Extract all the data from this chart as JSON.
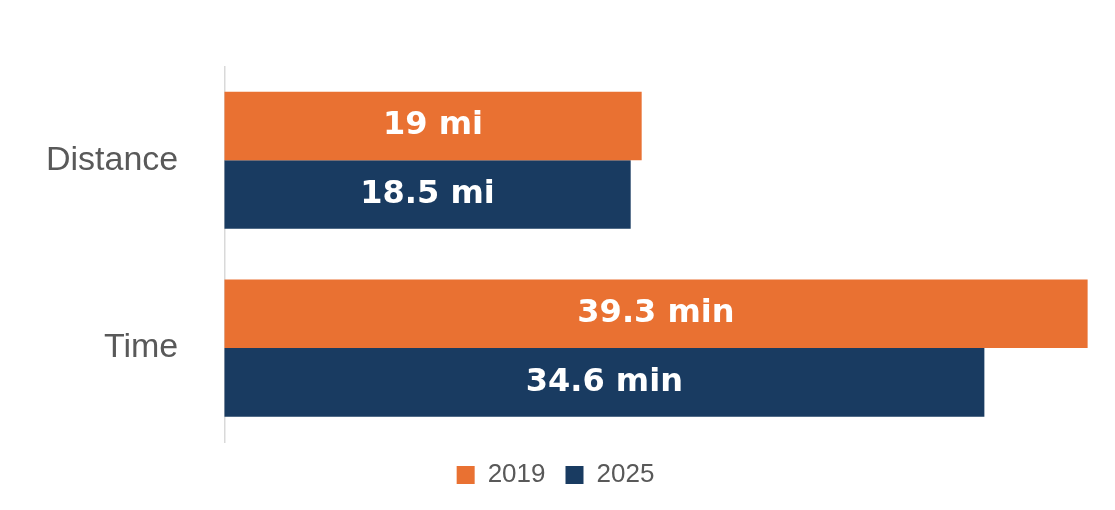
{
  "chart_data": {
    "type": "bar",
    "orientation": "horizontal",
    "categories": [
      "Distance",
      "Time"
    ],
    "series": [
      {
        "name": "2019",
        "color": "#e97132",
        "values": [
          19,
          39.3
        ],
        "value_labels": [
          "19 mi",
          "39.3 min"
        ]
      },
      {
        "name": "2025",
        "color": "#193b61",
        "values": [
          18.5,
          34.6
        ],
        "value_labels": [
          "18.5 mi",
          "34.6 min"
        ]
      }
    ],
    "legend": "bottom"
  }
}
